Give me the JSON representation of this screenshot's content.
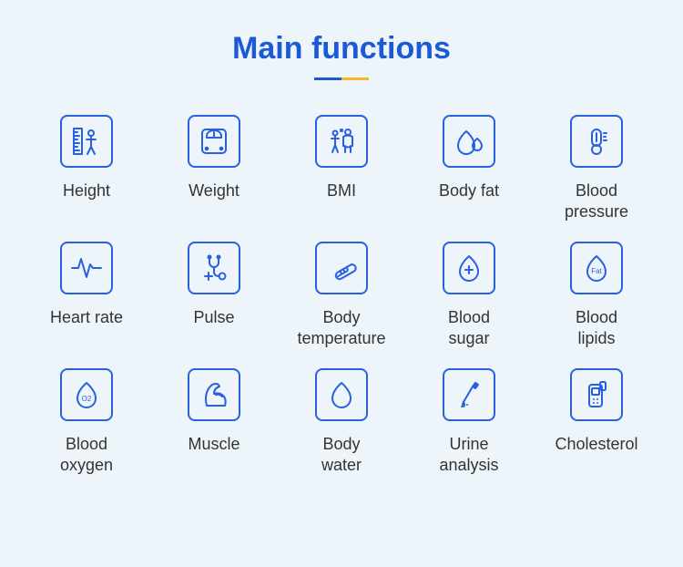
{
  "background_color": "#edf5fa",
  "title": {
    "text": "Main functions",
    "color": "#1b59d6",
    "fontsize": 34,
    "fontweight": 700
  },
  "underline": {
    "color_left": "#1b59d6",
    "color_right": "#f5b928",
    "width": 60,
    "height": 3
  },
  "icon": {
    "stroke_color": "#2860e0",
    "box_size": 58,
    "border_radius": 8,
    "border_width": 2
  },
  "label_style": {
    "color": "#333333",
    "fontsize": 18
  },
  "grid": {
    "columns": 5,
    "rows": 3,
    "row_gap": 22,
    "column_gap": 10
  },
  "items": [
    {
      "key": "height",
      "label": "Height",
      "icon": "height"
    },
    {
      "key": "weight",
      "label": "Weight",
      "icon": "weight"
    },
    {
      "key": "bmi",
      "label": "BMI",
      "icon": "bmi"
    },
    {
      "key": "body-fat",
      "label": "Body fat",
      "icon": "body-fat"
    },
    {
      "key": "blood-pressure",
      "label": "Blood\npressure",
      "icon": "blood-pressure"
    },
    {
      "key": "heart-rate",
      "label": "Heart rate",
      "icon": "heart-rate"
    },
    {
      "key": "pulse",
      "label": "Pulse",
      "icon": "pulse"
    },
    {
      "key": "body-temperature",
      "label": "Body\ntemperature",
      "icon": "body-temperature"
    },
    {
      "key": "blood-sugar",
      "label": "Blood\nsugar",
      "icon": "blood-sugar"
    },
    {
      "key": "blood-lipids",
      "label": "Blood\nlipids",
      "icon": "blood-lipids"
    },
    {
      "key": "blood-oxygen",
      "label": "Blood\noxygen",
      "icon": "blood-oxygen"
    },
    {
      "key": "muscle",
      "label": "Muscle",
      "icon": "muscle"
    },
    {
      "key": "body-water",
      "label": "Body\nwater",
      "icon": "body-water"
    },
    {
      "key": "urine-analysis",
      "label": "Urine\nanalysis",
      "icon": "urine-analysis"
    },
    {
      "key": "cholesterol",
      "label": "Cholesterol",
      "icon": "cholesterol"
    }
  ]
}
